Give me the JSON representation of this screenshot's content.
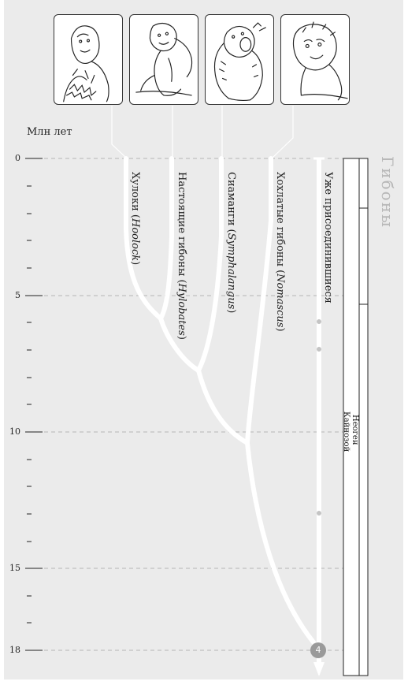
{
  "axis": {
    "unit_label": "Млн лет",
    "major_ticks": [
      "0",
      "5",
      "10",
      "15",
      "18"
    ]
  },
  "group_title": "Гибоны",
  "taxa": [
    {
      "name": "Хулоки",
      "latin": "Hoolock"
    },
    {
      "name": "Настоящие гибоны",
      "latin": "Hylobates"
    },
    {
      "name": "Сиаманги",
      "latin": "Symphalangus"
    },
    {
      "name": "Хохлатые гибоны",
      "latin": "Nomascus"
    }
  ],
  "lineage_label": "Уже присоединившиеся",
  "node_badge": "4",
  "timescale": {
    "era": "Кайнозой",
    "period": "Неоген"
  },
  "portraits": [
    "hoolock-portrait",
    "hylobates-portrait",
    "siamang-portrait",
    "nomascus-portrait"
  ],
  "colors": {
    "panel": "#ebebeb",
    "branch": "#ffffff",
    "dash": "#b5b5b5",
    "badge": "#9a9a9a",
    "title": "#b8b8b8"
  }
}
